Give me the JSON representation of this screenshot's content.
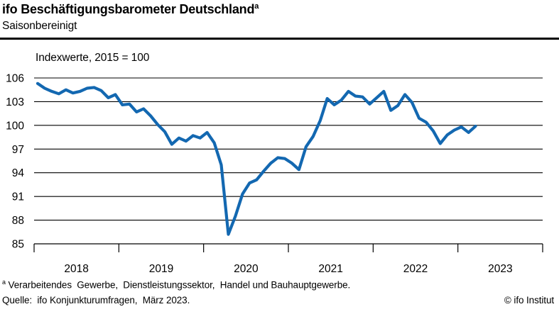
{
  "header": {
    "title": "ifo Beschäftigungsbarometer Deutschland",
    "title_superscript": "a",
    "subtitle": "Saisonbereinigt"
  },
  "footer": {
    "footnote_marker": "a",
    "footnote": " Verarbeitendes  Gewerbe,  Dienstleistungssektor,  Handel und Bauhauptgewerbe.",
    "source": "Quelle:  ifo Konjunkturumfragen,  März 2023.",
    "copyright": "© ifo Institut"
  },
  "chart_data": {
    "type": "line",
    "title": "ifo Beschäftigungsbarometer Deutschland (saisonbereinigt)",
    "axis_note": "Indexwerte, 2015 = 100",
    "ylabel": "",
    "xlabel": "",
    "ylim": [
      85,
      106
    ],
    "yticks": [
      85,
      88,
      91,
      94,
      97,
      100,
      103,
      106
    ],
    "grid": "horizontal",
    "x_tick_years": [
      "2018",
      "2019",
      "2020",
      "2021",
      "2022",
      "2023"
    ],
    "x_start_month": "2018-01",
    "x_end_month": "2023-03",
    "line_color": "#1368b1",
    "series": [
      {
        "name": "ifo Beschäftigungsbarometer",
        "monthly_values": [
          105.3,
          104.7,
          104.3,
          104.0,
          104.5,
          104.1,
          104.3,
          104.7,
          104.8,
          104.4,
          103.5,
          103.9,
          102.6,
          102.7,
          101.7,
          102.1,
          101.2,
          100.1,
          99.2,
          97.6,
          98.4,
          98.0,
          98.7,
          98.4,
          99.1,
          97.8,
          95.0,
          86.2,
          88.5,
          91.3,
          92.7,
          93.1,
          94.2,
          95.2,
          95.9,
          95.8,
          95.2,
          94.4,
          97.3,
          98.6,
          100.6,
          103.4,
          102.6,
          103.2,
          104.3,
          103.7,
          103.6,
          102.7,
          103.5,
          104.3,
          101.9,
          102.5,
          103.9,
          102.9,
          100.9,
          100.4,
          99.3,
          97.7,
          98.8,
          99.4,
          99.8,
          99.1,
          99.9
        ]
      }
    ]
  }
}
